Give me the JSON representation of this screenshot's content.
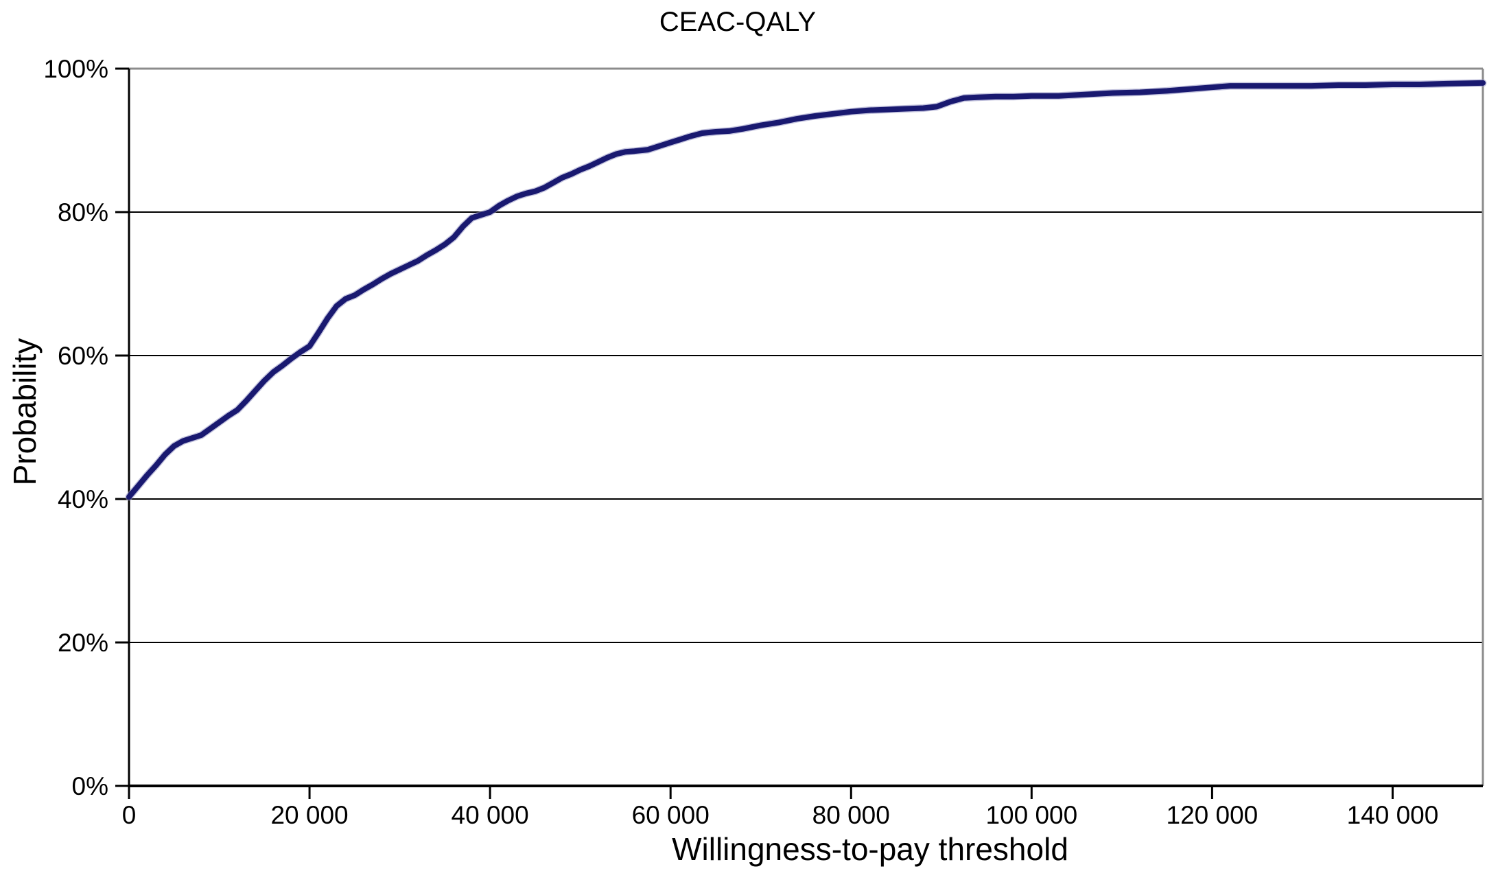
{
  "chart_data": {
    "type": "line",
    "title": "CEAC-QALY",
    "xlabel": "Willingness-to-pay threshold",
    "ylabel": "Probability",
    "xlim": [
      0,
      150000
    ],
    "ylim": [
      0,
      100
    ],
    "grid": "horizontal",
    "legend": "none",
    "colors": {
      "line": "#191970",
      "line_fringe": "#9393c2",
      "gridline": "#000000",
      "axis": "#000000",
      "plot_border": "#8c8c8c",
      "text": "#000000",
      "background": "#ffffff"
    },
    "x_ticks": [
      {
        "value": 0,
        "label": "0"
      },
      {
        "value": 20000,
        "label": "20 000"
      },
      {
        "value": 40000,
        "label": "40 000"
      },
      {
        "value": 60000,
        "label": "60 000"
      },
      {
        "value": 80000,
        "label": "80 000"
      },
      {
        "value": 100000,
        "label": "100 000"
      },
      {
        "value": 120000,
        "label": "120 000"
      },
      {
        "value": 140000,
        "label": "140 000"
      }
    ],
    "y_ticks": [
      {
        "value": 0,
        "label": "0%"
      },
      {
        "value": 20,
        "label": "20%"
      },
      {
        "value": 40,
        "label": "40%"
      },
      {
        "value": 60,
        "label": "60%"
      },
      {
        "value": 80,
        "label": "80%"
      },
      {
        "value": 100,
        "label": "100%"
      }
    ],
    "series": [
      {
        "name": "CEAC-QALY",
        "points": [
          [
            0,
            40.3
          ],
          [
            1000,
            41.8
          ],
          [
            2000,
            43.3
          ],
          [
            3000,
            44.7
          ],
          [
            4000,
            46.2
          ],
          [
            5000,
            47.4
          ],
          [
            6000,
            48.1
          ],
          [
            7000,
            48.5
          ],
          [
            8000,
            48.9
          ],
          [
            9000,
            49.8
          ],
          [
            10000,
            50.7
          ],
          [
            11000,
            51.6
          ],
          [
            12000,
            52.4
          ],
          [
            13000,
            53.7
          ],
          [
            14000,
            55.1
          ],
          [
            15000,
            56.5
          ],
          [
            16000,
            57.7
          ],
          [
            17000,
            58.6
          ],
          [
            18000,
            59.6
          ],
          [
            19000,
            60.5
          ],
          [
            20000,
            61.3
          ],
          [
            21000,
            63.2
          ],
          [
            22000,
            65.2
          ],
          [
            23000,
            66.9
          ],
          [
            24000,
            67.9
          ],
          [
            25000,
            68.4
          ],
          [
            26000,
            69.2
          ],
          [
            27000,
            69.9
          ],
          [
            28000,
            70.7
          ],
          [
            29000,
            71.4
          ],
          [
            30000,
            72.0
          ],
          [
            31000,
            72.6
          ],
          [
            32000,
            73.2
          ],
          [
            33000,
            74.0
          ],
          [
            34000,
            74.7
          ],
          [
            35000,
            75.5
          ],
          [
            36000,
            76.5
          ],
          [
            37000,
            78.0
          ],
          [
            38000,
            79.2
          ],
          [
            39000,
            79.6
          ],
          [
            40000,
            80.0
          ],
          [
            41000,
            80.9
          ],
          [
            42000,
            81.6
          ],
          [
            43000,
            82.2
          ],
          [
            44000,
            82.6
          ],
          [
            45000,
            82.9
          ],
          [
            46000,
            83.4
          ],
          [
            47000,
            84.1
          ],
          [
            48000,
            84.8
          ],
          [
            49000,
            85.3
          ],
          [
            50000,
            85.9
          ],
          [
            51000,
            86.4
          ],
          [
            52000,
            87.0
          ],
          [
            53000,
            87.6
          ],
          [
            54000,
            88.1
          ],
          [
            55000,
            88.4
          ],
          [
            56000,
            88.5
          ],
          [
            57500,
            88.7
          ],
          [
            59000,
            89.3
          ],
          [
            60000,
            89.7
          ],
          [
            61000,
            90.1
          ],
          [
            62000,
            90.5
          ],
          [
            63500,
            91.0
          ],
          [
            65000,
            91.2
          ],
          [
            66500,
            91.3
          ],
          [
            68000,
            91.6
          ],
          [
            70000,
            92.1
          ],
          [
            72000,
            92.5
          ],
          [
            74000,
            93.0
          ],
          [
            76000,
            93.4
          ],
          [
            78000,
            93.7
          ],
          [
            80000,
            94.0
          ],
          [
            82000,
            94.2
          ],
          [
            84000,
            94.3
          ],
          [
            86000,
            94.4
          ],
          [
            88000,
            94.5
          ],
          [
            89500,
            94.7
          ],
          [
            91000,
            95.4
          ],
          [
            92500,
            95.9
          ],
          [
            94000,
            96.0
          ],
          [
            96000,
            96.1
          ],
          [
            98000,
            96.1
          ],
          [
            100000,
            96.2
          ],
          [
            103000,
            96.2
          ],
          [
            106000,
            96.4
          ],
          [
            109000,
            96.6
          ],
          [
            112000,
            96.7
          ],
          [
            115000,
            96.9
          ],
          [
            118000,
            97.2
          ],
          [
            120000,
            97.4
          ],
          [
            122000,
            97.6
          ],
          [
            125000,
            97.6
          ],
          [
            128000,
            97.6
          ],
          [
            131000,
            97.6
          ],
          [
            134000,
            97.7
          ],
          [
            137000,
            97.7
          ],
          [
            140000,
            97.8
          ],
          [
            143000,
            97.8
          ],
          [
            146000,
            97.9
          ],
          [
            150000,
            98.0
          ]
        ]
      }
    ]
  }
}
